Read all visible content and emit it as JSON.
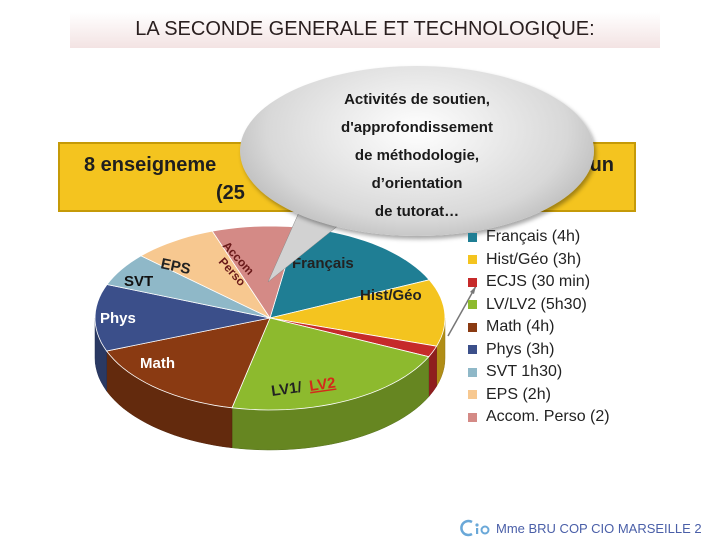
{
  "title": "LA SECONDE GENERALE ET TECHNOLOGIQUE:",
  "banner": {
    "line1_left": "8 enseigneme",
    "line1_right": "un",
    "line2": "(25"
  },
  "callout": {
    "lines": [
      "Activités de soutien,",
      "d'approfondissement",
      "de méthodologie,",
      "d’orientation",
      "de tutorat…"
    ]
  },
  "footer": "Mme BRU COP CIO MARSEILLE 2",
  "pie_labels": {
    "francais": "Français",
    "hist_geo": "Hist/Géo",
    "math": "Math",
    "phys": "Phys",
    "svt": "SVT",
    "eps": "EPS",
    "accom1": "Accom",
    "accom2": "Perso",
    "lv_prefix": "LV1/",
    "lv_suffix": "LV2"
  },
  "chart_data": {
    "type": "pie",
    "legend_position": "right",
    "categories": [
      "Français (4h)",
      "Hist/Géo (3h)",
      "ECJS (30 min)",
      "LV/LV2 (5h30)",
      "Math (4h)",
      "Phys (3h)",
      "SVT 1h30)",
      "EPS (2h)",
      "Accom. Perso (2)"
    ],
    "values": [
      4,
      3,
      0.5,
      5.5,
      4,
      3,
      1.5,
      2,
      2
    ],
    "colors": [
      "#1f7e94",
      "#f4c41f",
      "#c62a2a",
      "#8dba2e",
      "#8a3a12",
      "#3b4f8a",
      "#8fb8c8",
      "#f7c890",
      "#d48a86"
    ]
  }
}
